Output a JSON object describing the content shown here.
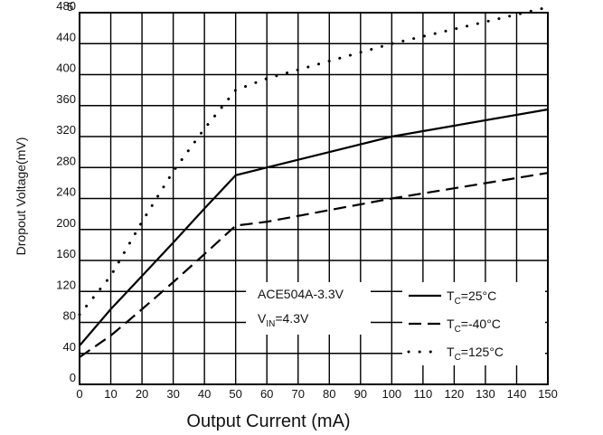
{
  "chart_data": {
    "type": "line",
    "xlabel": "Output Current (mA)",
    "ylabel": "Dropout Voltage(mV)",
    "xlim": [
      0,
      150
    ],
    "ylim": [
      0,
      480
    ],
    "grid": true,
    "x_ticks": [
      0,
      10,
      20,
      30,
      40,
      50,
      60,
      70,
      80,
      90,
      100,
      110,
      120,
      130,
      140,
      150
    ],
    "y_ticks": [
      0,
      40,
      80,
      120,
      160,
      200,
      240,
      280,
      320,
      360,
      400,
      440,
      480
    ],
    "corner_mark": "5",
    "annotation": {
      "device": "ACE504A-3.3V",
      "vin_prefix": "V",
      "vin_sub": "IN",
      "vin_suffix": "=4.3V"
    },
    "series": [
      {
        "name": "TC=25°C",
        "legend": {
          "pre": "T",
          "sub": "C",
          "post": "=25°C"
        },
        "style": "solid",
        "points": [
          [
            0,
            50
          ],
          [
            10,
            97
          ],
          [
            20,
            140
          ],
          [
            30,
            183
          ],
          [
            40,
            227
          ],
          [
            50,
            270
          ],
          [
            60,
            280
          ],
          [
            100,
            320
          ],
          [
            150,
            355
          ]
        ]
      },
      {
        "name": "TC=-40°C",
        "legend": {
          "pre": "T",
          "sub": "C",
          "post": "=-40°C"
        },
        "style": "dashed",
        "points": [
          [
            0,
            35
          ],
          [
            10,
            63
          ],
          [
            20,
            97
          ],
          [
            30,
            132
          ],
          [
            40,
            168
          ],
          [
            50,
            205
          ],
          [
            60,
            210
          ],
          [
            100,
            240
          ],
          [
            150,
            273
          ]
        ]
      },
      {
        "name": "TC=125°C",
        "legend": {
          "pre": "T",
          "sub": "C",
          "post": "=125°C"
        },
        "style": "dotted",
        "points": [
          [
            0,
            90
          ],
          [
            10,
            140
          ],
          [
            20,
            210
          ],
          [
            30,
            275
          ],
          [
            40,
            330
          ],
          [
            50,
            380
          ],
          [
            60,
            395
          ],
          [
            100,
            440
          ],
          [
            150,
            487
          ]
        ]
      }
    ]
  }
}
